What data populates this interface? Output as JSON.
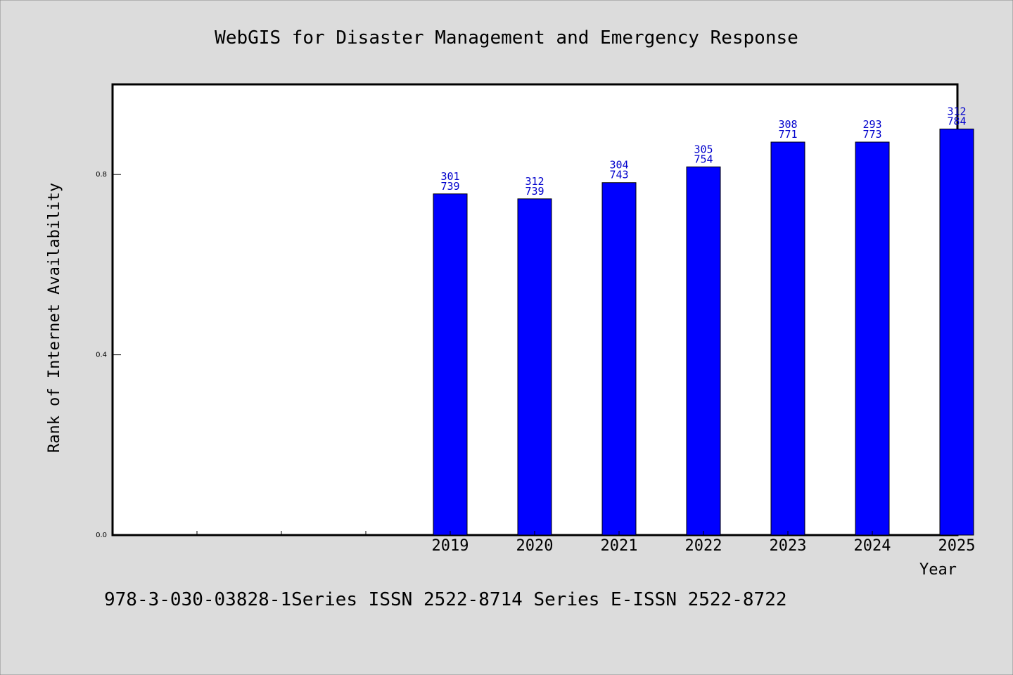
{
  "chart_data": {
    "type": "bar",
    "title": "WebGIS for Disaster Management and Emergency Response",
    "xlabel": "Year",
    "ylabel": "Rank of Internet Availability",
    "footer": "978-3-030-03828-1Series ISSN 2522-8714 Series E-ISSN 2522-8722",
    "ylim": [
      0,
      1.0
    ],
    "yticks": [
      "0.0",
      "0.4",
      "0.8"
    ],
    "ytick_values": [
      0.0,
      0.4,
      0.8
    ],
    "categories": [
      "",
      "",
      "",
      "2019",
      "2020",
      "2021",
      "2022",
      "2023",
      "2024",
      "2025"
    ],
    "values": [
      null,
      null,
      null,
      0.757,
      0.746,
      0.782,
      0.817,
      0.872,
      0.872,
      0.901
    ],
    "labels_top": [
      "",
      "",
      "",
      "301",
      "312",
      "304",
      "305",
      "308",
      "293",
      "312"
    ],
    "labels_bottom": [
      "",
      "",
      "",
      "739",
      "739",
      "743",
      "754",
      "771",
      "773",
      "784"
    ],
    "bar_color": "#0000ff",
    "label_color": "#0000cc",
    "grid": false
  }
}
